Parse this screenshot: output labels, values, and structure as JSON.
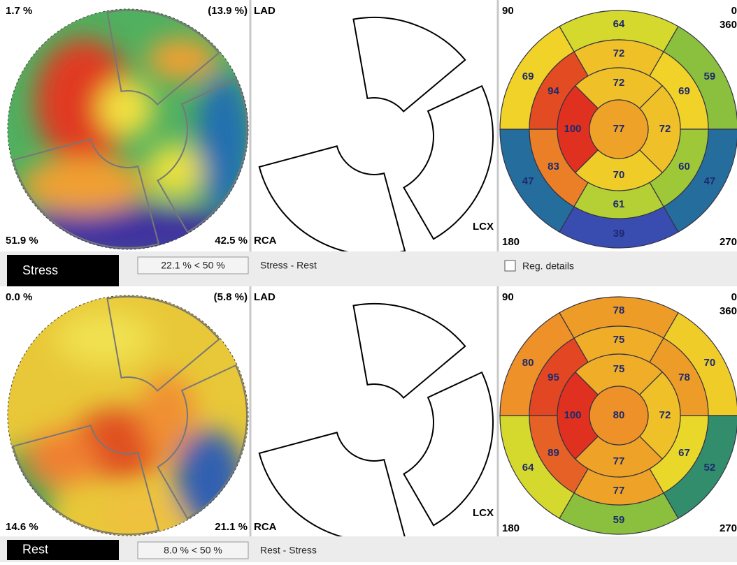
{
  "panels": [
    {
      "mode": "Stress",
      "map_labels": {
        "top_left": "1.7 %",
        "top_right": "(13.9 %)",
        "bottom_left": "51.9 %",
        "bottom_right": "42.5 %"
      },
      "territories": {
        "lad": "LAD",
        "rca": "RCA",
        "lcx": "LCX"
      },
      "angles": {
        "top_left": "90",
        "top_right": "0",
        "right": "360",
        "bottom_left": "180",
        "bottom_right": "270"
      },
      "segments": {
        "basal": [
          64,
          59,
          47,
          39,
          47,
          69
        ],
        "mid": [
          72,
          69,
          60,
          61,
          83,
          94
        ],
        "apical": [
          72,
          72,
          70,
          100
        ],
        "apex": 77
      },
      "extent": "22.1 % < 50 %",
      "comparison": "Stress - Rest"
    },
    {
      "mode": "Rest",
      "map_labels": {
        "top_left": "0.0 %",
        "top_right": "(5.8 %)",
        "bottom_left": "14.6 %",
        "bottom_right": "21.1 %"
      },
      "territories": {
        "lad": "LAD",
        "rca": "RCA",
        "lcx": "LCX"
      },
      "angles": {
        "top_left": "90",
        "top_right": "0",
        "right": "360",
        "bottom_left": "180",
        "bottom_right": "270"
      },
      "segments": {
        "basal": [
          78,
          70,
          52,
          59,
          64,
          80
        ],
        "mid": [
          75,
          78,
          67,
          77,
          89,
          95
        ],
        "apical": [
          75,
          72,
          77,
          100
        ],
        "apex": 80
      },
      "extent": "8.0 % < 50 %",
      "comparison": "Rest - Stress"
    }
  ],
  "reg_details": "Reg. details"
}
